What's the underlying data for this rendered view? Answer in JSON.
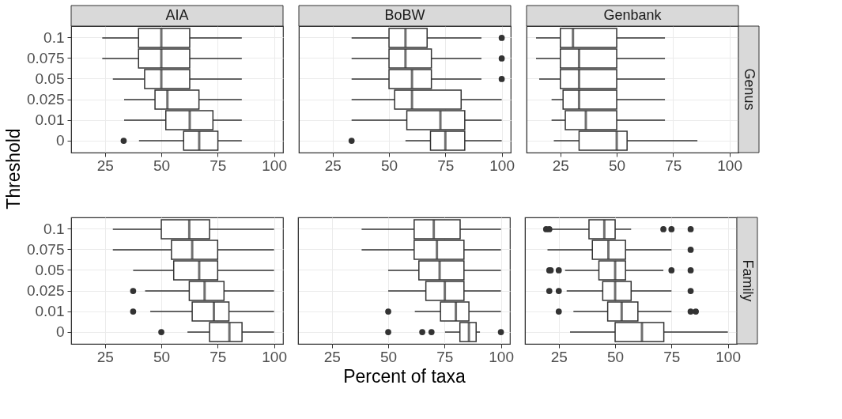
{
  "chart_data": [
    {
      "type": "box",
      "orientation": "horizontal",
      "title": "AIA",
      "ylabel": "Threshold",
      "categories": [
        "0.1",
        "0.075",
        "0.05",
        "0.025",
        "0.01",
        "0"
      ],
      "xlim": [
        10,
        104
      ],
      "xticks": [
        25,
        50,
        75,
        100
      ],
      "grid": true,
      "boxes": [
        {
          "low": 23.8,
          "q1": 39.9,
          "median": 50,
          "q3": 62.6,
          "high": 85.7
        },
        {
          "low": 23.8,
          "q1": 39.9,
          "median": 50,
          "q3": 62.6,
          "high": 85.7
        },
        {
          "low": 28.5,
          "q1": 42.6,
          "median": 50,
          "q3": 62.6,
          "high": 85.7
        },
        {
          "low": 33.5,
          "q1": 47.2,
          "median": 52.7,
          "q3": 66.7,
          "high": 85.7
        },
        {
          "low": 33.5,
          "q1": 52,
          "median": 62.6,
          "q3": 72.9,
          "high": 85.7
        },
        {
          "low": 40.1,
          "q1": 59.9,
          "median": 66.8,
          "q3": 75.1,
          "high": 85.7,
          "outliers": [
            33.3
          ]
        }
      ]
    },
    {
      "type": "box",
      "orientation": "horizontal",
      "title": "BoBW",
      "categories": [
        "0.1",
        "0.075",
        "0.05",
        "0.025",
        "0.01",
        "0"
      ],
      "xlim": [
        10,
        104
      ],
      "xticks": [
        25,
        50,
        75,
        100
      ],
      "grid": true,
      "tick_labels": "x",
      "boxes": [
        {
          "low": 33.4,
          "q1": 50,
          "median": 57.3,
          "q3": 66.9,
          "high": 91,
          "outliers": [
            100
          ]
        },
        {
          "low": 33.4,
          "q1": 50,
          "median": 57.3,
          "q3": 68.8,
          "high": 91,
          "outliers": [
            100
          ]
        },
        {
          "low": 33.4,
          "q1": 50,
          "median": 60.2,
          "q3": 68.8,
          "high": 91,
          "outliers": [
            100
          ]
        },
        {
          "low": 33.4,
          "q1": 52.5,
          "median": 60.2,
          "q3": 82,
          "high": 100
        },
        {
          "low": 33.4,
          "q1": 57.9,
          "median": 72.8,
          "q3": 83.6,
          "high": 100
        },
        {
          "low": 57.3,
          "q1": 68.4,
          "median": 75,
          "q3": 83.6,
          "high": 100,
          "outliers": [
            33.4
          ]
        }
      ]
    },
    {
      "type": "box",
      "orientation": "horizontal",
      "title": "Genbank",
      "annotations": [
        "Genus"
      ],
      "categories": [
        "0.1",
        "0.075",
        "0.05",
        "0.025",
        "0.01",
        "0"
      ],
      "xlim": [
        10,
        104
      ],
      "xticks": [
        25,
        50,
        75,
        100
      ],
      "grid": true,
      "tick_labels": "x",
      "boxes": [
        {
          "low": 14.2,
          "q1": 25,
          "median": 30.6,
          "q3": 50,
          "high": 71.4
        },
        {
          "low": 14.2,
          "q1": 25,
          "median": 33.3,
          "q3": 50,
          "high": 71.4
        },
        {
          "low": 15.6,
          "q1": 25,
          "median": 33.3,
          "q3": 50,
          "high": 71.4
        },
        {
          "low": 21.1,
          "q1": 26.2,
          "median": 33.3,
          "q3": 50,
          "high": 71.4
        },
        {
          "low": 21.1,
          "q1": 27.2,
          "median": 36.3,
          "q3": 50,
          "high": 71.4
        },
        {
          "low": 22.1,
          "q1": 33.3,
          "median": 50,
          "q3": 54.6,
          "high": 85.8
        }
      ]
    },
    {
      "type": "box",
      "orientation": "horizontal",
      "categories": [
        "0.1",
        "0.075",
        "0.05",
        "0.025",
        "0.01",
        "0"
      ],
      "xlim": [
        10,
        104
      ],
      "xticks": [
        25,
        50,
        75,
        100
      ],
      "grid": true,
      "boxes": [
        {
          "low": 28.5,
          "q1": 50,
          "median": 62.4,
          "q3": 71.4,
          "high": 100
        },
        {
          "low": 28.5,
          "q1": 54.5,
          "median": 63.7,
          "q3": 75,
          "high": 100
        },
        {
          "low": 37.5,
          "q1": 55.5,
          "median": 66.8,
          "q3": 75,
          "high": 100
        },
        {
          "low": 42.8,
          "q1": 62.4,
          "median": 69.2,
          "q3": 77.8,
          "high": 100,
          "outliers": [
            37.5
          ]
        },
        {
          "low": 45.1,
          "q1": 63.7,
          "median": 73.3,
          "q3": 80,
          "high": 100,
          "outliers": [
            37.5
          ]
        },
        {
          "low": 61.6,
          "q1": 71.4,
          "median": 80.2,
          "q3": 85.8,
          "high": 100,
          "outliers": [
            50
          ]
        }
      ]
    },
    {
      "type": "box",
      "orientation": "horizontal",
      "xlabel": "Percent of taxa",
      "categories": [
        "0.1",
        "0.075",
        "0.05",
        "0.025",
        "0.01",
        "0"
      ],
      "xlim": [
        10,
        104
      ],
      "xticks": [
        25,
        50,
        75,
        100
      ],
      "grid": true,
      "tick_labels": "x",
      "boxes": [
        {
          "low": 38.2,
          "q1": 61.5,
          "median": 70.2,
          "q3": 81.9,
          "high": 100
        },
        {
          "low": 38.2,
          "q1": 61.5,
          "median": 71.6,
          "q3": 83.6,
          "high": 100
        },
        {
          "low": 50,
          "q1": 63.6,
          "median": 72.8,
          "q3": 83.6,
          "high": 100
        },
        {
          "low": 50,
          "q1": 66.7,
          "median": 75.1,
          "q3": 83.6,
          "high": 100
        },
        {
          "low": 61.8,
          "q1": 73.2,
          "median": 80,
          "q3": 85.8,
          "high": 100,
          "outliers": [
            50
          ]
        },
        {
          "low": 75.2,
          "q1": 81.8,
          "median": 85.8,
          "q3": 89,
          "high": 90.7,
          "outliers": [
            50,
            65.1,
            69.2,
            100
          ]
        }
      ]
    },
    {
      "type": "box",
      "orientation": "horizontal",
      "annotations": [
        "Family"
      ],
      "categories": [
        "0.1",
        "0.075",
        "0.05",
        "0.025",
        "0.01",
        "0"
      ],
      "xlim": [
        10,
        104
      ],
      "xticks": [
        25,
        50,
        75,
        100
      ],
      "grid": true,
      "tick_labels": "x",
      "boxes": [
        {
          "low": 21.4,
          "q1": 38.4,
          "median": 45.2,
          "q3": 50,
          "high": 57.1,
          "outliers": [
            19.4,
            20.8,
            71.4,
            75,
            83.5
          ]
        },
        {
          "low": 20,
          "q1": 39.9,
          "median": 47,
          "q3": 54.6,
          "high": 75,
          "outliers": [
            83.5
          ]
        },
        {
          "low": 27.8,
          "q1": 42.8,
          "median": 50,
          "q3": 54.6,
          "high": 71.4,
          "outliers": [
            20.8,
            21.4,
            25,
            75,
            83.5
          ]
        },
        {
          "low": 28.5,
          "q1": 44.5,
          "median": 50,
          "q3": 57.1,
          "high": 75,
          "outliers": [
            20.8,
            25,
            83.5
          ]
        },
        {
          "low": 31.5,
          "q1": 46.7,
          "median": 52.9,
          "q3": 60.1,
          "high": 75,
          "outliers": [
            25,
            83.5,
            85.8
          ]
        },
        {
          "low": 30,
          "q1": 50,
          "median": 61.9,
          "q3": 71.6,
          "high": 100
        }
      ]
    }
  ]
}
